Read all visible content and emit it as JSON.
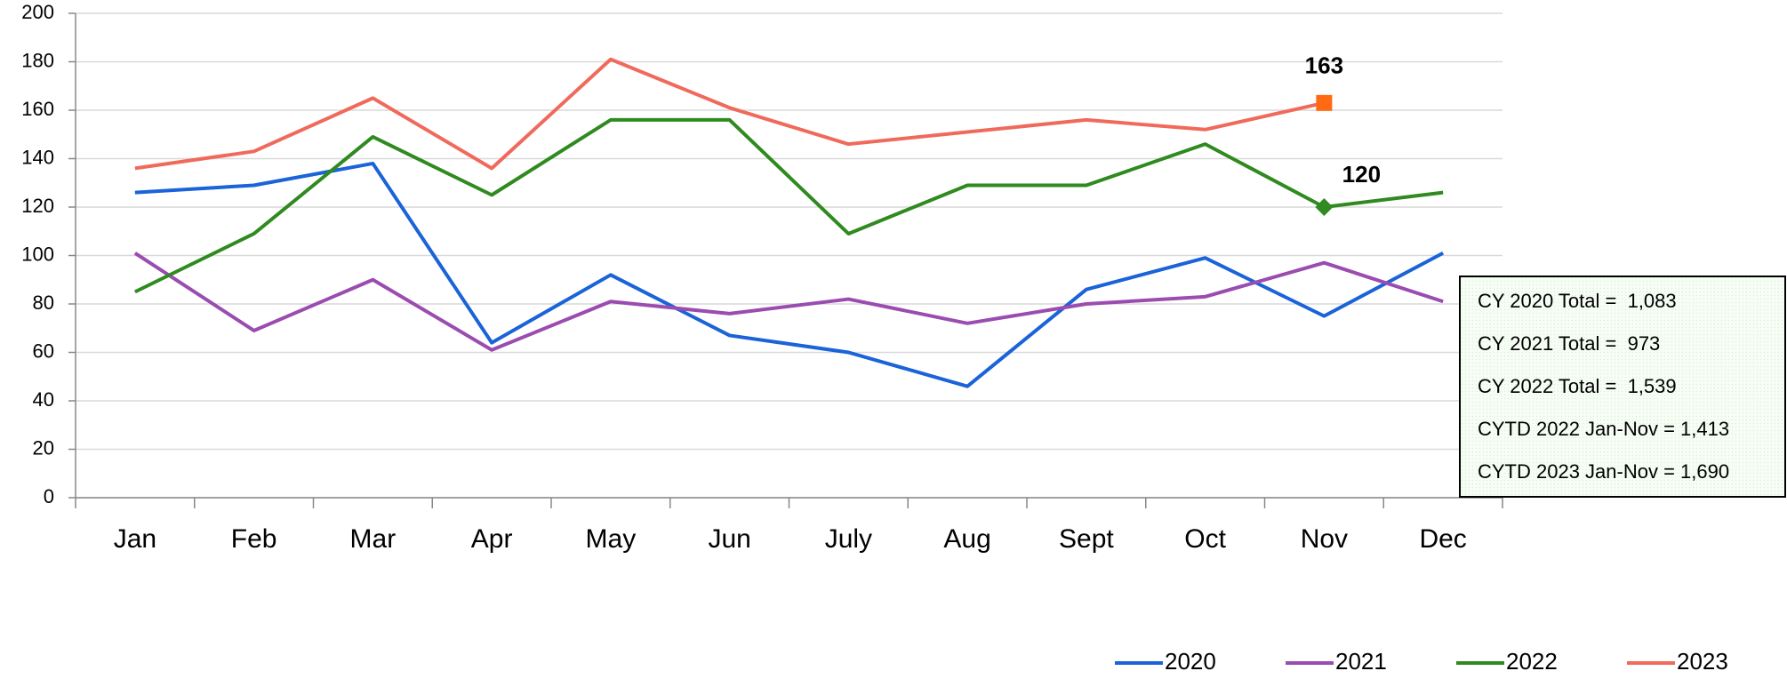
{
  "chart_data": {
    "type": "line",
    "categories": [
      "Jan",
      "Feb",
      "Mar",
      "Apr",
      "May",
      "Jun",
      "July",
      "Aug",
      "Sept",
      "Oct",
      "Nov",
      "Dec"
    ],
    "series": [
      {
        "name": "2020",
        "color": "#1a63d8",
        "values": [
          126,
          129,
          138,
          64,
          92,
          67,
          60,
          46,
          86,
          99,
          75,
          101
        ]
      },
      {
        "name": "2021",
        "color": "#9b4cb0",
        "values": [
          101,
          69,
          90,
          61,
          81,
          76,
          82,
          72,
          80,
          83,
          97,
          81
        ]
      },
      {
        "name": "2022",
        "color": "#2f8a1f",
        "marker": "diamond",
        "marker_color": "#2f8a1f",
        "values": [
          85,
          109,
          149,
          125,
          156,
          156,
          109,
          129,
          129,
          146,
          120,
          126
        ],
        "value_labels": [
          null,
          null,
          null,
          null,
          null,
          null,
          null,
          null,
          null,
          null,
          "120",
          null
        ]
      },
      {
        "name": "2023",
        "color": "#f06a5c",
        "marker": "square",
        "marker_color": "#ff6a13",
        "values": [
          136,
          143,
          165,
          136,
          181,
          161,
          146,
          151,
          156,
          152,
          163,
          null
        ],
        "value_labels": [
          null,
          null,
          null,
          null,
          null,
          null,
          null,
          null,
          null,
          null,
          "163",
          null
        ]
      }
    ],
    "ylim": [
      0,
      200
    ],
    "yticks": [
      0,
      20,
      40,
      60,
      80,
      100,
      120,
      140,
      160,
      180,
      200
    ],
    "grid": true,
    "legend": "bottom-right",
    "annotations": [
      "CY 2020 Total =  1,083",
      "CY 2021 Total =  973",
      "CY 2022 Total =  1,539",
      "CYTD 2022 Jan-Nov = 1,413",
      "CYTD 2023 Jan-Nov = 1,690"
    ]
  }
}
